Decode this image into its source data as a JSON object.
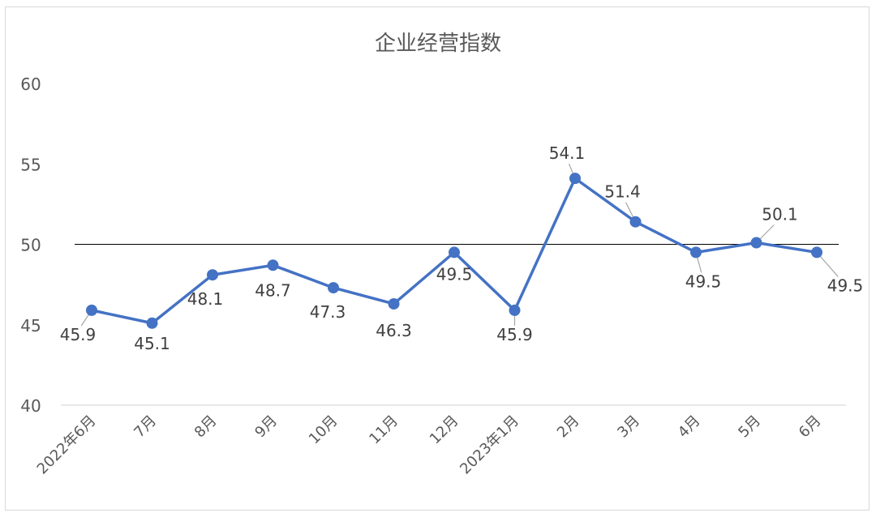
{
  "chart_data": {
    "type": "line",
    "title": "企业经营指数",
    "categories": [
      "2022年6月",
      "7月",
      "8月",
      "9月",
      "10月",
      "11月",
      "12月",
      "2023年1月",
      "2月",
      "3月",
      "4月",
      "5月",
      "6月"
    ],
    "series": [
      {
        "values": [
          45.9,
          45.1,
          48.1,
          48.7,
          47.3,
          46.3,
          49.5,
          45.9,
          54.1,
          51.4,
          49.5,
          50.1,
          49.5
        ]
      }
    ],
    "data_labels": [
      "45.9",
      "45.1",
      "48.1",
      "48.7",
      "47.3",
      "46.3",
      "49.5",
      "45.9",
      "54.1",
      "51.4",
      "49.5",
      "50.1",
      "49.5"
    ],
    "reference_line": 50,
    "ylim": [
      40,
      60
    ],
    "yticks": [
      "40",
      "45",
      "50",
      "55",
      "60"
    ],
    "grid": false,
    "legend": "none",
    "colors": {
      "series": "#4472C4",
      "reference": "#000000",
      "axis": "#d9d9d9",
      "leader": "#a6a6a6"
    }
  }
}
